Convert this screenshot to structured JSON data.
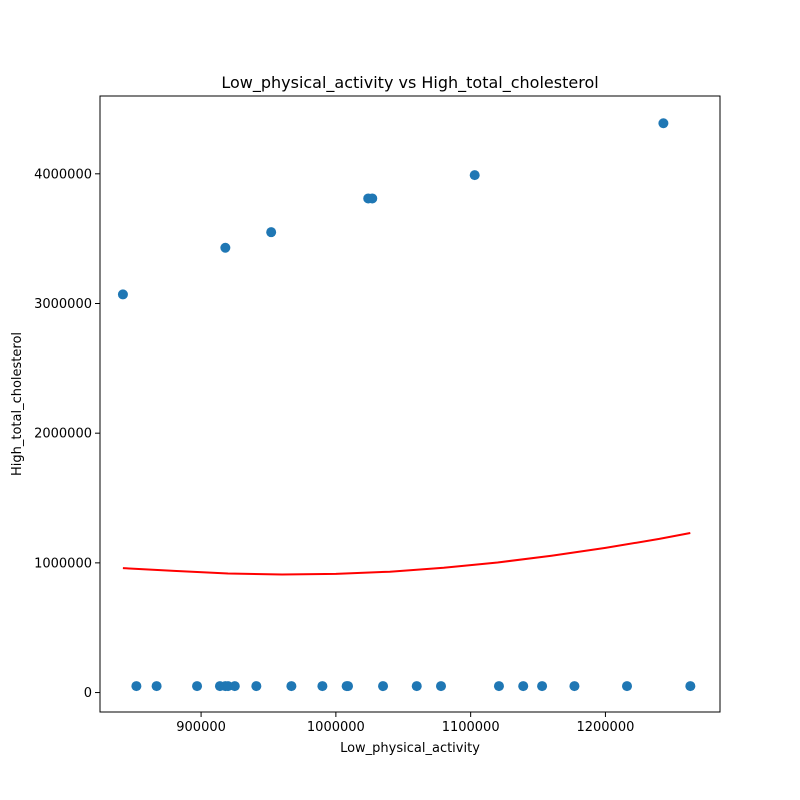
{
  "chart_data": {
    "type": "scatter",
    "title": "Low_physical_activity vs High_total_cholesterol",
    "xlabel": "Low_physical_activity",
    "ylabel": "High_total_cholesterol",
    "xlim": [
      825000,
      1285000
    ],
    "ylim": [
      -150000,
      4600000
    ],
    "xticks": [
      900000,
      1000000,
      1100000,
      1200000
    ],
    "xtick_labels": [
      "900000",
      "1000000",
      "1100000",
      "1200000"
    ],
    "yticks": [
      0,
      1000000,
      2000000,
      3000000,
      4000000
    ],
    "ytick_labels": [
      "0",
      "1000000",
      "2000000",
      "3000000",
      "4000000"
    ],
    "grid": false,
    "point_color": "#1f77b4",
    "fit_color": "#ff0000",
    "points": [
      {
        "x": 842000,
        "y": 3070000
      },
      {
        "x": 918000,
        "y": 3430000
      },
      {
        "x": 952000,
        "y": 3550000
      },
      {
        "x": 1024000,
        "y": 3810000
      },
      {
        "x": 1027000,
        "y": 3810000
      },
      {
        "x": 1103000,
        "y": 3990000
      },
      {
        "x": 1243000,
        "y": 4390000
      },
      {
        "x": 852000,
        "y": 50000
      },
      {
        "x": 867000,
        "y": 50000
      },
      {
        "x": 897000,
        "y": 50000
      },
      {
        "x": 914000,
        "y": 50000
      },
      {
        "x": 918000,
        "y": 50000
      },
      {
        "x": 920000,
        "y": 50000
      },
      {
        "x": 925000,
        "y": 50000
      },
      {
        "x": 941000,
        "y": 50000
      },
      {
        "x": 967000,
        "y": 50000
      },
      {
        "x": 990000,
        "y": 50000
      },
      {
        "x": 1008000,
        "y": 50000
      },
      {
        "x": 1009000,
        "y": 50000
      },
      {
        "x": 1035000,
        "y": 50000
      },
      {
        "x": 1060000,
        "y": 50000
      },
      {
        "x": 1078000,
        "y": 50000
      },
      {
        "x": 1121000,
        "y": 50000
      },
      {
        "x": 1139000,
        "y": 50000
      },
      {
        "x": 1153000,
        "y": 50000
      },
      {
        "x": 1177000,
        "y": 50000
      },
      {
        "x": 1216000,
        "y": 50000
      },
      {
        "x": 1263000,
        "y": 50000
      }
    ],
    "fit_curve": {
      "x": [
        842000,
        880000,
        920000,
        960000,
        1000000,
        1040000,
        1080000,
        1120000,
        1160000,
        1200000,
        1240000,
        1263000
      ],
      "y": [
        960000,
        938000,
        918000,
        910000,
        915000,
        932000,
        962000,
        1003000,
        1055000,
        1115000,
        1185000,
        1230000
      ]
    }
  }
}
